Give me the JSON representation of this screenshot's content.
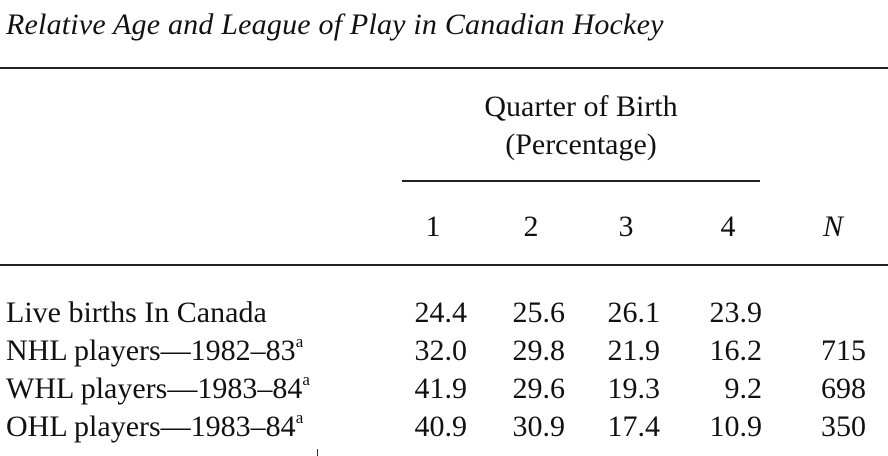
{
  "title": "Relative Age and League of Play in Canadian Hockey",
  "header": {
    "group_line1": "Quarter of Birth",
    "group_line2": "(Percentage)",
    "columns": [
      "1",
      "2",
      "3",
      "4",
      "N"
    ]
  },
  "rows": [
    {
      "label": "Live births In Canada",
      "footnote": "",
      "values": [
        "24.4",
        "25.6",
        "26.1",
        "23.9",
        ""
      ]
    },
    {
      "label": "NHL players—1982–83",
      "footnote": "a",
      "values": [
        "32.0",
        "29.8",
        "21.9",
        "16.2",
        "715"
      ]
    },
    {
      "label": "WHL players—1983–84",
      "footnote": "a",
      "values": [
        "41.9",
        "29.6",
        "19.3",
        "9.2",
        "698"
      ]
    },
    {
      "label": "OHL players—1983–84",
      "footnote": "a",
      "values": [
        "40.9",
        "30.9",
        "17.4",
        "10.9",
        "350"
      ]
    }
  ]
}
